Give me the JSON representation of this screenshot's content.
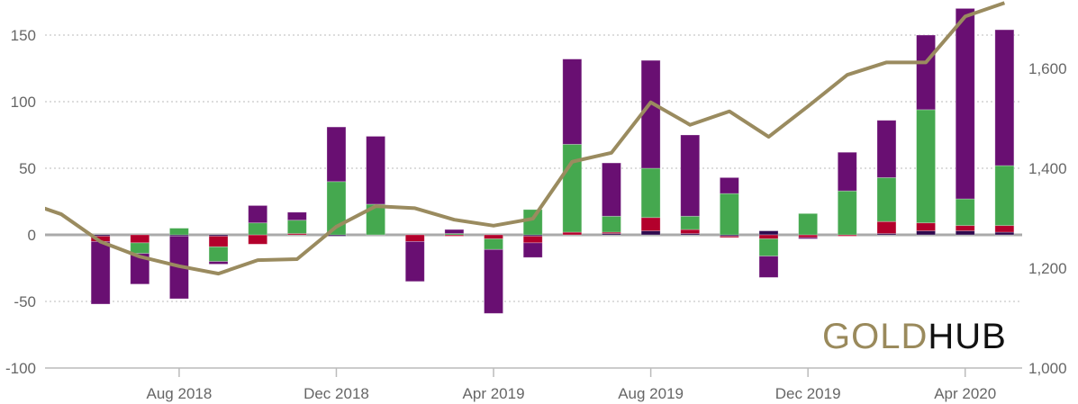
{
  "chart_data": {
    "type": "bar+line",
    "categories": [
      "May 2018",
      "Jun 2018",
      "Jul 2018",
      "Aug 2018",
      "Sep 2018",
      "Oct 2018",
      "Nov 2018",
      "Dec 2018",
      "Jan 2019",
      "Feb 2019",
      "Mar 2019",
      "Apr 2019",
      "May 2019",
      "Jun 2019",
      "Jul 2019",
      "Aug 2019",
      "Sep 2019",
      "Oct 2019",
      "Nov 2019",
      "Dec 2019",
      "Jan 2020",
      "Feb 2020",
      "Mar 2020",
      "Apr 2020",
      "May 2020"
    ],
    "x_tick_labels": [
      "Aug 2018",
      "Dec 2018",
      "Apr 2019",
      "Aug 2019",
      "Dec 2019",
      "Apr 2020"
    ],
    "x_tick_categories": [
      "Aug 2018",
      "Dec 2018",
      "Apr 2019",
      "Aug 2019",
      "Dec 2019",
      "Apr 2020"
    ],
    "left_axis": {
      "ylim": [
        -100,
        170
      ],
      "ticks": [
        -100,
        -50,
        0,
        50,
        100,
        150
      ],
      "tick_labels": [
        "-100",
        "-50",
        "0",
        "50",
        "100",
        "150"
      ]
    },
    "right_axis": {
      "ylim": [
        1000,
        1735
      ],
      "ticks": [
        1000,
        1200,
        1400,
        1600
      ],
      "tick_labels": [
        "1,000",
        "1,200",
        "1,400",
        "1,600"
      ]
    },
    "grid": true,
    "stacked_series": [
      {
        "color": "#2e0a4f",
        "values": [
          null,
          -1,
          0,
          -1,
          -1,
          0,
          0,
          -1,
          0,
          0,
          0,
          0,
          -1,
          0,
          1,
          3,
          1,
          -1,
          3,
          0,
          0,
          1,
          3,
          3,
          2
        ]
      },
      {
        "color": "#b3002c",
        "values": [
          null,
          -4,
          -6,
          0,
          -8,
          -7,
          1,
          0,
          0,
          -5,
          -1,
          -3,
          -5,
          2,
          1,
          10,
          3,
          -1,
          -3,
          -2,
          -1,
          9,
          6,
          4,
          5
        ]
      },
      {
        "color": "#45a84f",
        "values": [
          null,
          0,
          -8,
          5,
          -11,
          9,
          10,
          40,
          23,
          0,
          1,
          -8,
          19,
          66,
          12,
          37,
          10,
          31,
          -13,
          16,
          33,
          33,
          85,
          20,
          45
        ]
      },
      {
        "color": "#690f72",
        "values": [
          null,
          -47,
          -23,
          -47,
          -2,
          13,
          6,
          41,
          51,
          -30,
          3,
          -48,
          -11,
          64,
          40,
          81,
          61,
          12,
          -16,
          -1,
          29,
          43,
          56,
          143,
          102
        ]
      }
    ],
    "line_series": {
      "color": "#9a8b5f",
      "axis": "right",
      "values": [
        1308,
        1253,
        1223,
        1204,
        1189,
        1216,
        1218,
        1283,
        1324,
        1320,
        1297,
        1285,
        1299,
        1413,
        1431,
        1532,
        1487,
        1514,
        1463,
        1524,
        1587,
        1612,
        1612,
        1704,
        1731
      ],
      "start_value": 1335
    },
    "logo": {
      "part1": "GOLD",
      "part2": "HUB"
    }
  }
}
